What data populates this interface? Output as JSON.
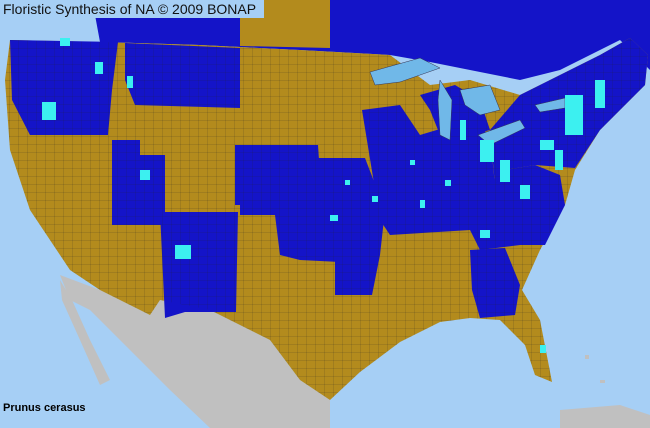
{
  "title": "Floristic Synthesis of NA © 2009 BONAP",
  "species": "Prunus cerasus",
  "legend_colors": {
    "present_in_state": "#1414c8",
    "absent_native_state_not_present": "#b38b1d",
    "present_in_county": "#3cf0f0",
    "outside_area": "#c0c0c0",
    "water": "#a6cff5",
    "lakes": "#70b8e8"
  }
}
